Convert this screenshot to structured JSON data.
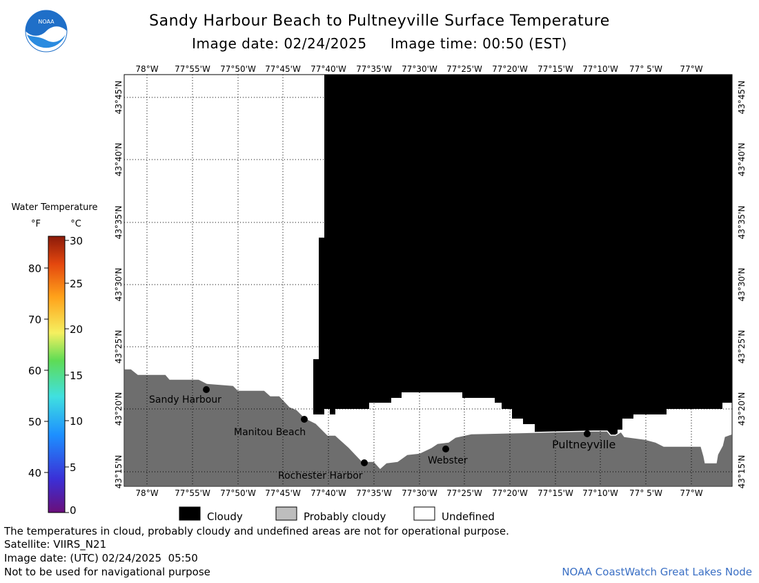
{
  "title": "Sandy Harbour Beach to Pultneyville Surface Temperature",
  "subtitle_date": "Image date: 02/24/2025",
  "subtitle_time": "Image time: 00:50 (EST)",
  "logo_text": "NOAA",
  "lon_labels": [
    "78°W",
    "77°55'W",
    "77°50'W",
    "77°45'W",
    "77°40'W",
    "77°35'W",
    "77°30'W",
    "77°25'W",
    "77°20'W",
    "77°15'W",
    "77°10'W",
    "77° 5'W",
    "77°W"
  ],
  "lat_labels": [
    "43°15'N",
    "43°20'N",
    "43°25'N",
    "43°30'N",
    "43°35'N",
    "43°40'N",
    "43°45'N"
  ],
  "places": [
    {
      "name": "Sandy Harbour"
    },
    {
      "name": "Manitou Beach"
    },
    {
      "name": "Rochester Harbor"
    },
    {
      "name": "Webster"
    },
    {
      "name": "Pultneyville"
    }
  ],
  "legend": {
    "title": "Water Temperature",
    "unit_f": "°F",
    "unit_c": "°C",
    "f_ticks": [
      "40",
      "50",
      "60",
      "70",
      "80"
    ],
    "c_ticks": [
      "0",
      "5",
      "10",
      "15",
      "20",
      "25",
      "30"
    ]
  },
  "key": {
    "cloudy": "Cloudy",
    "probably_cloudy": "Probably cloudy",
    "undefined": "Undefined"
  },
  "colors": {
    "land": "#6e6e6e",
    "cloud": "#000000",
    "undefined": "#ffffff",
    "probably_cloudy": "#bdbdbd",
    "credit": "#3a6fc4"
  },
  "footer": {
    "disclaimer": "The temperatures in cloud, probably cloudy and undefined areas are not for operational purpose.",
    "satellite": "Satellite: VIIRS_N21",
    "image_date_utc": "Image date: (UTC) 02/24/2025  05:50",
    "nav_warning": "Not to be used for navigational purpose",
    "credit": "NOAA CoastWatch Great Lakes Node"
  }
}
